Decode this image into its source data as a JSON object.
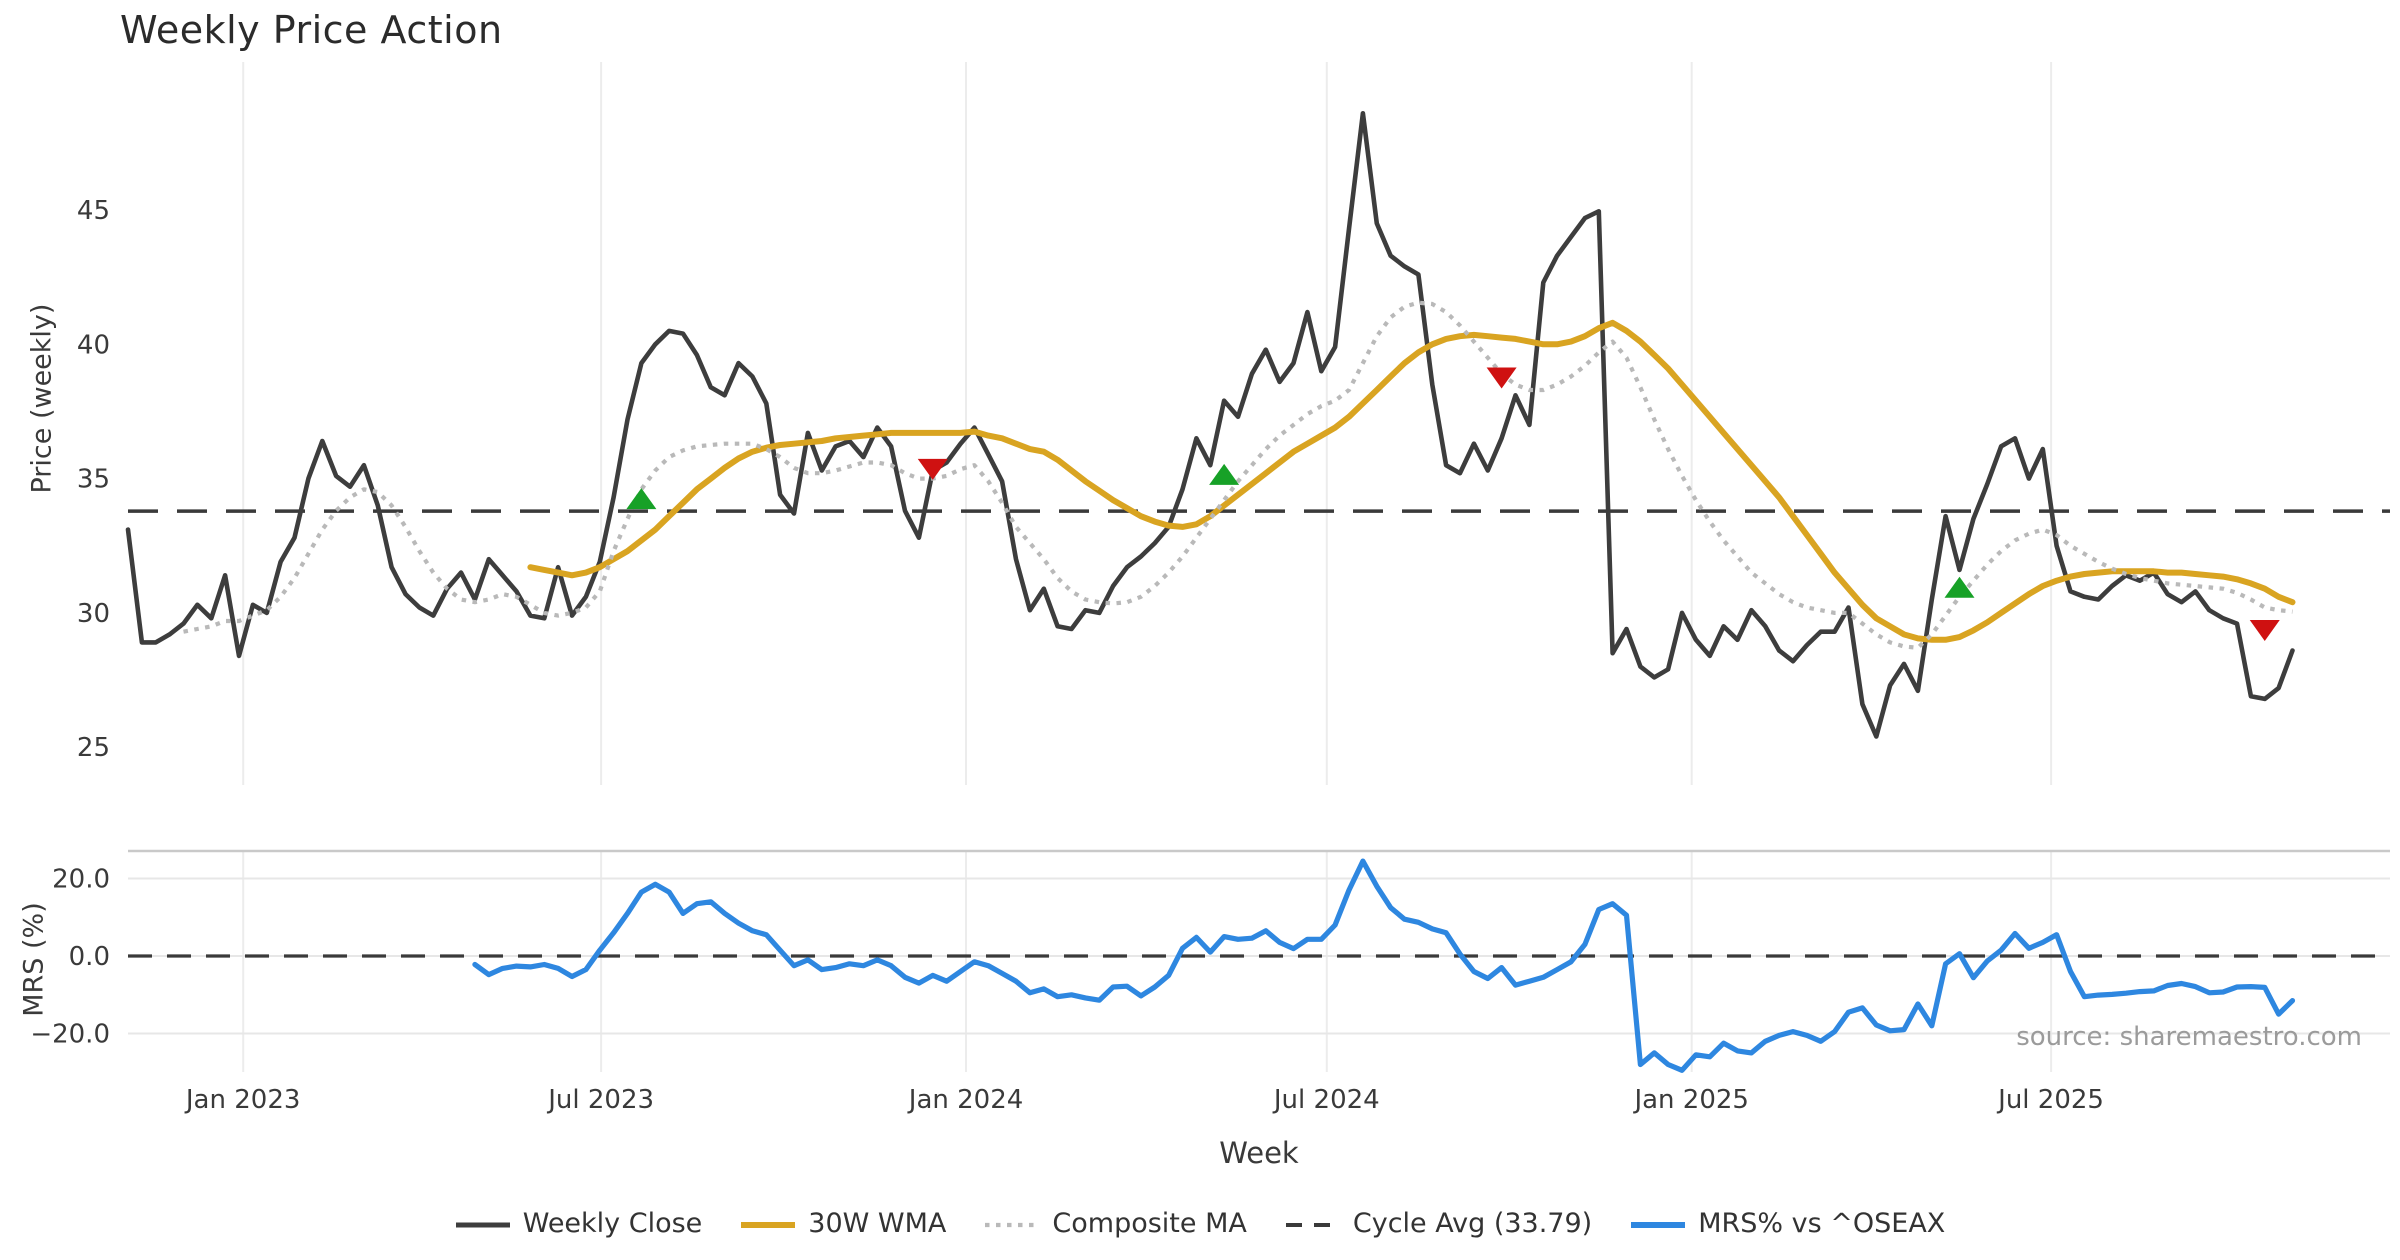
{
  "title": "Weekly Price Action",
  "source_note": "source: sharemaestro.com",
  "colors": {
    "close": "#3d3d3d",
    "wma": "#d9a421",
    "composite": "#b9b9b9",
    "cycle_avg": "#3a3a3a",
    "mrs": "#2e87e0",
    "buy_marker": "#17a127",
    "sell_marker": "#cf1111",
    "grid_vertical": "#ececec",
    "grid_horizontal": "#e7e7e7",
    "panel_spine": "#c9c9c9",
    "tick_text": "#3a3a3a",
    "background": "#ffffff"
  },
  "legend": [
    {
      "key": "close",
      "label": "Weekly Close"
    },
    {
      "key": "wma",
      "label": "30W WMA"
    },
    {
      "key": "composite",
      "label": "Composite MA"
    },
    {
      "key": "cycle",
      "label": "Cycle Avg (33.79)"
    },
    {
      "key": "mrs",
      "label": "MRS% vs ^OSEAX"
    }
  ],
  "axes": {
    "price_ylabel": "Price (weekly)",
    "mrs_ylabel": "MRS (%)",
    "xlabel": "Week",
    "price_yticks": [
      25,
      30,
      35,
      40,
      45
    ],
    "mrs_yticks": [
      -20,
      0,
      20
    ],
    "mrs_ytick_labels": [
      "−20.0",
      "0.0",
      "20.0"
    ],
    "x_ticks": [
      {
        "week": 8.3,
        "label": "Jan 2023"
      },
      {
        "week": 34.1,
        "label": "Jul 2023"
      },
      {
        "week": 60.4,
        "label": "Jan 2024"
      },
      {
        "week": 86.4,
        "label": "Jul 2024"
      },
      {
        "week": 112.7,
        "label": "Jan 2025"
      },
      {
        "week": 138.6,
        "label": "Jul 2025"
      }
    ]
  },
  "chart_data": {
    "type": "line",
    "x_unit": "week_index",
    "first_week_approx": "Nov 2022",
    "cycle_avg": 33.79,
    "price_ylim": [
      24.5,
      50.5
    ],
    "mrs_ylim": [
      -32,
      28
    ],
    "panels": [
      {
        "name": "price",
        "series": [
          {
            "key": "close",
            "name": "Weekly Close",
            "start_week": 0,
            "values": [
              33.1,
              28.9,
              28.9,
              29.2,
              29.6,
              30.3,
              29.8,
              31.4,
              28.4,
              30.3,
              30.0,
              31.9,
              32.8,
              35.0,
              36.4,
              35.1,
              34.7,
              35.5,
              34.0,
              31.7,
              30.7,
              30.2,
              29.9,
              30.9,
              31.5,
              30.5,
              32.0,
              31.4,
              30.8,
              29.9,
              29.8,
              31.7,
              29.9,
              30.6,
              31.9,
              34.3,
              37.2,
              39.3,
              40.0,
              40.5,
              40.4,
              39.6,
              38.4,
              38.1,
              39.3,
              38.8,
              37.8,
              34.4,
              33.7,
              36.7,
              35.3,
              36.2,
              36.4,
              35.8,
              36.9,
              36.2,
              33.8,
              32.8,
              35.3,
              35.6,
              36.3,
              36.9,
              35.9,
              34.9,
              32.0,
              30.1,
              30.9,
              29.5,
              29.4,
              30.1,
              30.0,
              31.0,
              31.7,
              32.1,
              32.6,
              33.2,
              34.6,
              36.5,
              35.5,
              37.9,
              37.3,
              38.9,
              39.8,
              38.6,
              39.3,
              41.2,
              39.0,
              39.9,
              44.3,
              48.6,
              44.5,
              43.3,
              42.9,
              42.6,
              38.5,
              35.5,
              35.2,
              36.3,
              35.3,
              36.5,
              38.1,
              37.0,
              42.3,
              43.3,
              44.0,
              44.7,
              44.95,
              28.5,
              29.4,
              28.0,
              27.6,
              27.9,
              30.0,
              29.0,
              28.4,
              29.5,
              29.0,
              30.1,
              29.5,
              28.6,
              28.2,
              28.8,
              29.3,
              29.3,
              30.2,
              26.6,
              25.4,
              27.3,
              28.1,
              27.1,
              30.5,
              33.6,
              31.6,
              33.5,
              34.8,
              36.2,
              36.5,
              35.0,
              36.1,
              32.5,
              30.8,
              30.6,
              30.5,
              31.0,
              31.4,
              31.2,
              31.5,
              30.7,
              30.4,
              30.8,
              30.1,
              29.8,
              29.6,
              26.9,
              26.8,
              27.2,
              28.6
            ]
          },
          {
            "key": "wma",
            "name": "30W WMA",
            "start_week": 29,
            "values": [
              31.7,
              31.6,
              31.5,
              31.4,
              31.5,
              31.7,
              32.0,
              32.3,
              32.7,
              33.1,
              33.6,
              34.1,
              34.6,
              35.0,
              35.4,
              35.75,
              36.0,
              36.15,
              36.25,
              36.3,
              36.35,
              36.4,
              36.5,
              36.55,
              36.6,
              36.65,
              36.7,
              36.7,
              36.7,
              36.7,
              36.7,
              36.7,
              36.75,
              36.6,
              36.5,
              36.3,
              36.1,
              36.0,
              35.7,
              35.3,
              34.9,
              34.55,
              34.2,
              33.9,
              33.6,
              33.4,
              33.25,
              33.2,
              33.3,
              33.6,
              34.0,
              34.4,
              34.8,
              35.2,
              35.6,
              36.0,
              36.3,
              36.6,
              36.9,
              37.3,
              37.8,
              38.3,
              38.8,
              39.3,
              39.7,
              40.0,
              40.2,
              40.3,
              40.35,
              40.3,
              40.25,
              40.2,
              40.1,
              40.0,
              40.0,
              40.1,
              40.3,
              40.6,
              40.8,
              40.5,
              40.1,
              39.6,
              39.1,
              38.5,
              37.9,
              37.3,
              36.7,
              36.1,
              35.5,
              34.9,
              34.3,
              33.6,
              32.9,
              32.2,
              31.5,
              30.9,
              30.3,
              29.8,
              29.5,
              29.2,
              29.05,
              29.0,
              29.0,
              29.1,
              29.35,
              29.65,
              30.0,
              30.35,
              30.7,
              31.0,
              31.2,
              31.35,
              31.45,
              31.5,
              31.55,
              31.55,
              31.55,
              31.55,
              31.5,
              31.5,
              31.45,
              31.4,
              31.35,
              31.25,
              31.1,
              30.9,
              30.6,
              30.4
            ]
          },
          {
            "key": "composite",
            "name": "Composite MA",
            "start_week": 4,
            "values": [
              29.3,
              29.4,
              29.5,
              29.7,
              29.7,
              29.9,
              30.1,
              30.6,
              31.3,
              32.2,
              33.1,
              33.8,
              34.3,
              34.6,
              34.5,
              34.0,
              33.2,
              32.3,
              31.5,
              30.9,
              30.5,
              30.4,
              30.5,
              30.7,
              30.6,
              30.3,
              30.0,
              29.9,
              30.0,
              30.2,
              30.8,
              32.3,
              33.5,
              34.6,
              35.3,
              35.8,
              36.05,
              36.2,
              36.25,
              36.3,
              36.3,
              36.3,
              36.1,
              35.8,
              35.4,
              35.2,
              35.2,
              35.3,
              35.45,
              35.6,
              35.6,
              35.5,
              35.2,
              35.0,
              35.0,
              35.1,
              35.35,
              35.5,
              34.9,
              34.1,
              33.2,
              32.6,
              32.0,
              31.3,
              30.8,
              30.5,
              30.4,
              30.35,
              30.4,
              30.6,
              31.0,
              31.5,
              32.1,
              32.8,
              33.5,
              34.2,
              34.9,
              35.5,
              36.1,
              36.6,
              37.0,
              37.4,
              37.7,
              37.9,
              38.3,
              39.3,
              40.3,
              41.0,
              41.4,
              41.55,
              41.5,
              41.2,
              40.7,
              40.1,
              39.5,
              38.9,
              38.5,
              38.3,
              38.3,
              38.5,
              38.8,
              39.2,
              39.7,
              40.1,
              39.5,
              38.4,
              37.2,
              36.1,
              35.1,
              34.2,
              33.4,
              32.7,
              32.1,
              31.5,
              31.1,
              30.7,
              30.4,
              30.2,
              30.1,
              30.0,
              30.0,
              29.6,
              29.2,
              28.9,
              28.75,
              28.7,
              29.2,
              29.9,
              30.6,
              31.2,
              31.8,
              32.3,
              32.7,
              32.95,
              33.1,
              32.9,
              32.5,
              32.2,
              31.9,
              31.65,
              31.45,
              31.3,
              31.2,
              31.1,
              31.05,
              31.0,
              30.95,
              30.9,
              30.75,
              30.5,
              30.2,
              30.1,
              30.05
            ]
          }
        ],
        "markers": [
          {
            "type": "buy",
            "week": 37,
            "value": 34.2
          },
          {
            "type": "sell",
            "week": 58,
            "value": 35.4
          },
          {
            "type": "buy",
            "week": 79,
            "value": 35.1
          },
          {
            "type": "sell",
            "week": 99,
            "value": 38.8
          },
          {
            "type": "buy",
            "week": 132,
            "value": 30.9
          },
          {
            "type": "sell",
            "week": 154,
            "value": 29.4
          }
        ]
      },
      {
        "name": "mrs",
        "series": [
          {
            "key": "mrs",
            "name": "MRS% vs ^OSEAX",
            "start_week": 25,
            "values": [
              -2.2,
              -4.8,
              -3.2,
              -2.6,
              -2.8,
              -2.2,
              -3.2,
              -5.3,
              -3.5,
              1.5,
              6.0,
              11.0,
              16.5,
              18.5,
              16.5,
              11.0,
              13.5,
              14.0,
              11.0,
              8.5,
              6.5,
              5.5,
              1.5,
              -2.5,
              -1.0,
              -3.5,
              -3.0,
              -2.0,
              -2.5,
              -1.0,
              -2.5,
              -5.5,
              -7.0,
              -5.0,
              -6.5,
              -4.0,
              -1.5,
              -2.5,
              -4.5,
              -6.5,
              -9.5,
              -8.5,
              -10.5,
              -10.0,
              -10.8,
              -11.4,
              -8.0,
              -7.8,
              -10.3,
              -8.0,
              -5.0,
              2.0,
              4.8,
              1.0,
              5.0,
              4.3,
              4.6,
              6.5,
              3.5,
              1.9,
              4.3,
              4.3,
              8.0,
              17.0,
              24.5,
              18.0,
              12.5,
              9.5,
              8.7,
              7.0,
              6.0,
              0.5,
              -4.0,
              -5.8,
              -3.0,
              -7.5,
              -6.5,
              -5.5,
              -3.5,
              -1.5,
              3.0,
              12.0,
              13.5,
              10.5,
              -28.0,
              -25.0,
              -28.0,
              -29.5,
              -25.5,
              -26.0,
              -22.5,
              -24.5,
              -25.0,
              -22.0,
              -20.5,
              -19.5,
              -20.5,
              -22.0,
              -19.5,
              -14.5,
              -13.4,
              -17.8,
              -19.3,
              -19.0,
              -12.4,
              -18.0,
              -2.0,
              0.6,
              -5.6,
              -1.3,
              1.5,
              5.8,
              2.0,
              3.5,
              5.5,
              -4.0,
              -10.5,
              -10.1,
              -9.9,
              -9.6,
              -9.2,
              -9.0,
              -7.6,
              -7.1,
              -7.9,
              -9.5,
              -9.3,
              -8.0,
              -7.9,
              -8.1,
              -15.0,
              -11.5
            ]
          }
        ]
      }
    ]
  }
}
